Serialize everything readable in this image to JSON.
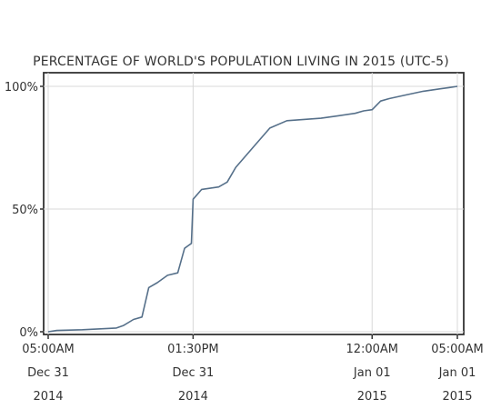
{
  "chart_data": {
    "type": "line",
    "title": "PERCENTAGE OF WORLD'S POPULATION LIVING IN 2015 (UTC-5)",
    "xlabel": "",
    "ylabel": "",
    "x_units": "hours after Dec 31 2014 05:00AM (UTC-5)",
    "xlim": [
      0,
      24.1
    ],
    "ylim": [
      0,
      100
    ],
    "yticks": [
      {
        "value": 0,
        "label": "0%"
      },
      {
        "value": 50,
        "label": "50%"
      },
      {
        "value": 100,
        "label": "100%"
      }
    ],
    "xticks": [
      {
        "value": 0,
        "label": "05:00AM",
        "date": "Dec 31",
        "year": "2014"
      },
      {
        "value": 8.5,
        "label": "01:30PM",
        "date": "Dec 31",
        "year": "2014"
      },
      {
        "value": 19,
        "label": "12:00AM",
        "date": "Jan 01",
        "year": "2015"
      },
      {
        "value": 24,
        "label": "05:00AM",
        "date": "Jan 01",
        "year": "2015"
      }
    ],
    "grid": true,
    "line_color": "#56708a",
    "series": [
      {
        "x": [
          0,
          0.5,
          2,
          4,
          4.4,
          5.0,
          5.5,
          5.9,
          6.4,
          7.0,
          7.6,
          8.0,
          8.2,
          8.4,
          8.5,
          9.0,
          10.0,
          10.5,
          11.0,
          12.0,
          13.0,
          14.0,
          15.0,
          16.0,
          17.0,
          18.0,
          18.5,
          19.0,
          19.5,
          20.0,
          21.0,
          22.0,
          23.0,
          23.5,
          24.0
        ],
        "y": [
          0,
          0.5,
          0.8,
          1.5,
          2.5,
          5.0,
          6.0,
          18.0,
          20.0,
          23.0,
          24.0,
          34.0,
          35.0,
          36.0,
          54.0,
          58.0,
          59.0,
          61.0,
          67.0,
          75.0,
          83.0,
          86.0,
          86.5,
          87.0,
          88.0,
          89.0,
          90.0,
          90.5,
          94.0,
          95.0,
          96.5,
          98.0,
          99.0,
          99.5,
          100.0
        ]
      }
    ]
  }
}
